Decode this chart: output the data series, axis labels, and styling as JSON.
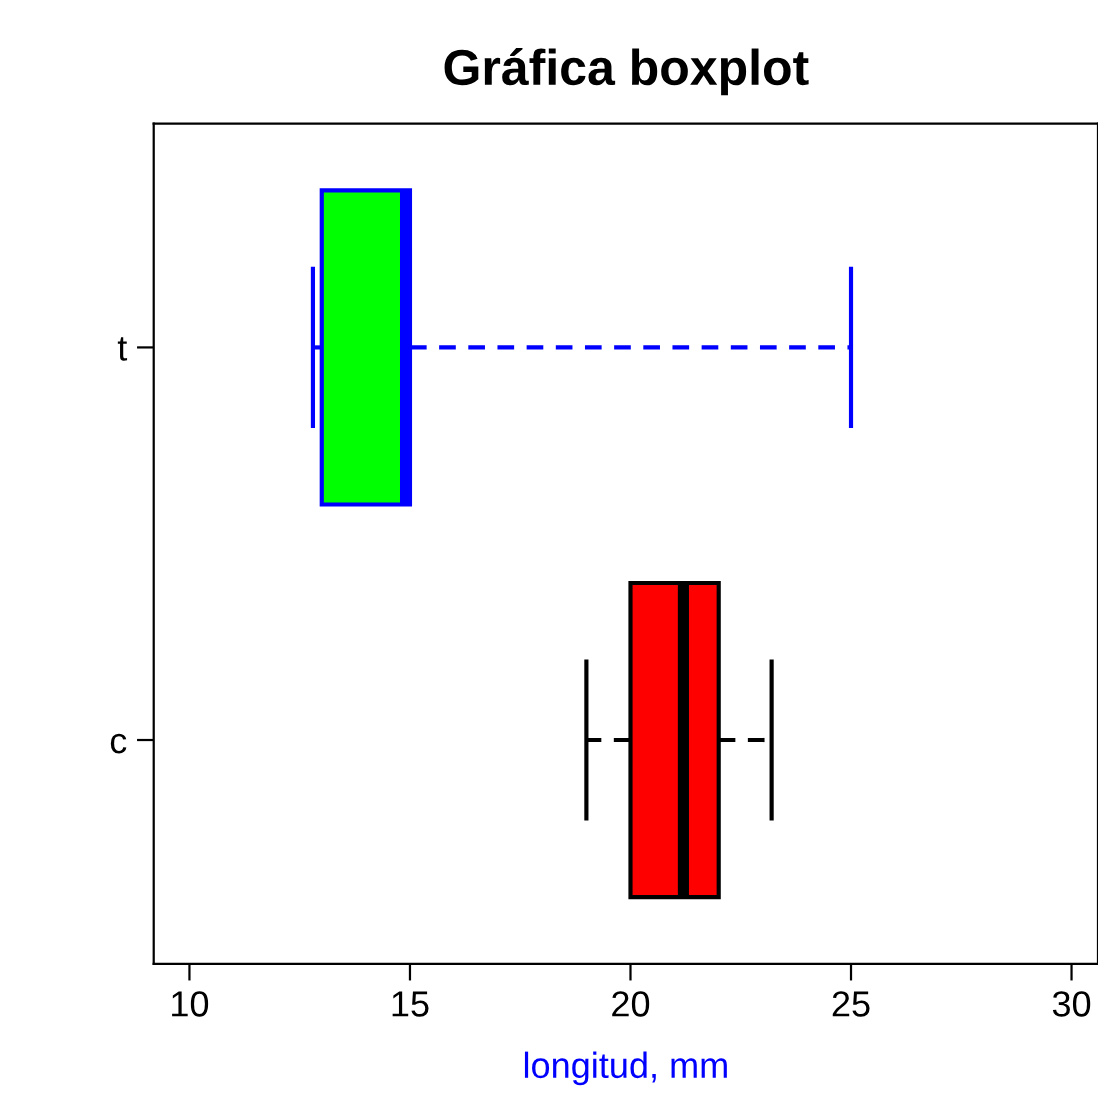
{
  "chart_data": {
    "type": "box",
    "orientation": "horizontal",
    "title": "Gráfica boxplot",
    "xlabel": "longitud, mm",
    "categories": [
      "t",
      "c"
    ],
    "boxes": [
      {
        "low": 12.8,
        "q1": 13.0,
        "median": 14.9,
        "q3": 15.0,
        "high": 25.0
      },
      {
        "low": 19.0,
        "q1": 20.0,
        "median": 21.2,
        "q3": 22.0,
        "high": 23.2
      }
    ],
    "colors": [
      "#00ff00",
      "#ff0000"
    ],
    "line_style": "dashed",
    "xlim": [
      9.19,
      30.6
    ],
    "xticks": [
      10,
      15,
      20,
      25,
      30
    ]
  }
}
